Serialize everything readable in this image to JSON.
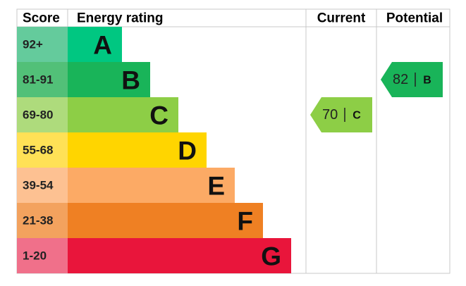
{
  "header": {
    "score": "Score",
    "rating": "Energy rating",
    "current": "Current",
    "potential": "Potential"
  },
  "bands": [
    {
      "score": "92+",
      "letter": "A",
      "color": "#00c781",
      "score_color": "#64cb9c"
    },
    {
      "score": "81-91",
      "letter": "B",
      "color": "#19b459",
      "score_color": "#52c078"
    },
    {
      "score": "69-80",
      "letter": "C",
      "color": "#8dce46",
      "score_color": "#aedb7c"
    },
    {
      "score": "55-68",
      "letter": "D",
      "color": "#ffd500",
      "score_color": "#ffe156"
    },
    {
      "score": "39-54",
      "letter": "E",
      "color": "#fcaa65",
      "score_color": "#fdc192"
    },
    {
      "score": "21-38",
      "letter": "F",
      "color": "#ef8023",
      "score_color": "#f3a25e"
    },
    {
      "score": "1-20",
      "letter": "G",
      "color": "#e9153b",
      "score_color": "#f0708a"
    }
  ],
  "current": {
    "value": 70,
    "letter": "C",
    "color": "#8dce46"
  },
  "potential": {
    "value": 82,
    "letter": "B",
    "color": "#19b459"
  }
}
